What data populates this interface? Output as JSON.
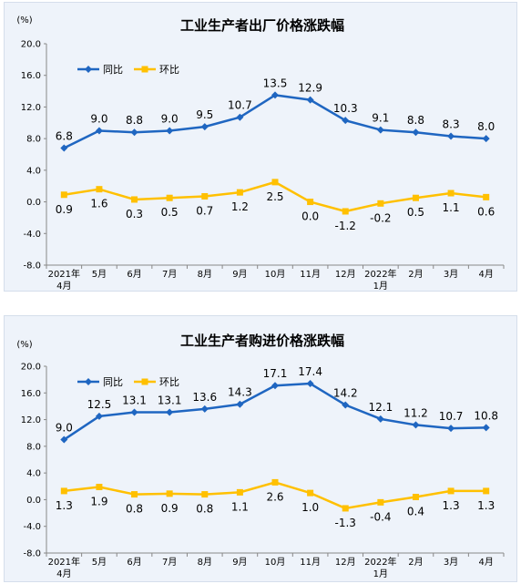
{
  "chart_data": [
    {
      "type": "line",
      "title": "工业生产者出厂价格涨跌幅",
      "unit_label": "(%)",
      "categories": [
        [
          "2021年",
          "4月"
        ],
        [
          "5月"
        ],
        [
          "6月"
        ],
        [
          "7月"
        ],
        [
          "8月"
        ],
        [
          "9月"
        ],
        [
          "10月"
        ],
        [
          "11月"
        ],
        [
          "12月"
        ],
        [
          "2022年",
          "1月"
        ],
        [
          "2月"
        ],
        [
          "3月"
        ],
        [
          "4月"
        ]
      ],
      "ylim": [
        -8.0,
        20.0
      ],
      "yticks": [
        "20.0",
        "16.0",
        "12.0",
        "8.0",
        "4.0",
        "0.0",
        "-4.0",
        "-8.0"
      ],
      "legend_position": "top-left",
      "series": [
        {
          "name": "同比",
          "color": "#1f66c1",
          "marker": "diamond",
          "values": [
            6.8,
            9.0,
            8.8,
            9.0,
            9.5,
            10.7,
            13.5,
            12.9,
            10.3,
            9.1,
            8.8,
            8.3,
            8.0
          ],
          "labels": [
            "6.8",
            "9.0",
            "8.8",
            "9.0",
            "9.5",
            "10.7",
            "13.5",
            "12.9",
            "10.3",
            "9.1",
            "8.8",
            "8.3",
            "8.0"
          ]
        },
        {
          "name": "环比",
          "color": "#ffc000",
          "marker": "square",
          "values": [
            0.9,
            1.6,
            0.3,
            0.5,
            0.7,
            1.2,
            2.5,
            0.0,
            -1.2,
            -0.2,
            0.5,
            1.1,
            0.6
          ],
          "labels": [
            "0.9",
            "1.6",
            "0.3",
            "0.5",
            "0.7",
            "1.2",
            "2.5",
            "0.0",
            "-1.2",
            "-0.2",
            "0.5",
            "1.1",
            "0.6"
          ]
        }
      ]
    },
    {
      "type": "line",
      "title": "工业生产者购进价格涨跌幅",
      "unit_label": "(%)",
      "categories": [
        [
          "2021年",
          "4月"
        ],
        [
          "5月"
        ],
        [
          "6月"
        ],
        [
          "7月"
        ],
        [
          "8月"
        ],
        [
          "9月"
        ],
        [
          "10月"
        ],
        [
          "11月"
        ],
        [
          "12月"
        ],
        [
          "2022年",
          "1月"
        ],
        [
          "2月"
        ],
        [
          "3月"
        ],
        [
          "4月"
        ]
      ],
      "ylim": [
        -8.0,
        20.0
      ],
      "yticks": [
        "20.0",
        "16.0",
        "12.0",
        "8.0",
        "4.0",
        "0.0",
        "-4.0",
        "-8.0"
      ],
      "legend_position": "top-left",
      "series": [
        {
          "name": "同比",
          "color": "#1f66c1",
          "marker": "diamond",
          "values": [
            9.0,
            12.5,
            13.1,
            13.1,
            13.6,
            14.3,
            17.1,
            17.4,
            14.2,
            12.1,
            11.2,
            10.7,
            10.8
          ],
          "labels": [
            "9.0",
            "12.5",
            "13.1",
            "13.1",
            "13.6",
            "14.3",
            "17.1",
            "17.4",
            "14.2",
            "12.1",
            "11.2",
            "10.7",
            "10.8"
          ]
        },
        {
          "name": "环比",
          "color": "#ffc000",
          "marker": "square",
          "values": [
            1.3,
            1.9,
            0.8,
            0.9,
            0.8,
            1.1,
            2.6,
            1.0,
            -1.3,
            -0.4,
            0.4,
            1.3,
            1.3
          ],
          "labels": [
            "1.3",
            "1.9",
            "0.8",
            "0.9",
            "0.8",
            "1.1",
            "2.6",
            "1.0",
            "-1.3",
            "-0.4",
            "0.4",
            "1.3",
            "1.3"
          ]
        }
      ]
    }
  ]
}
